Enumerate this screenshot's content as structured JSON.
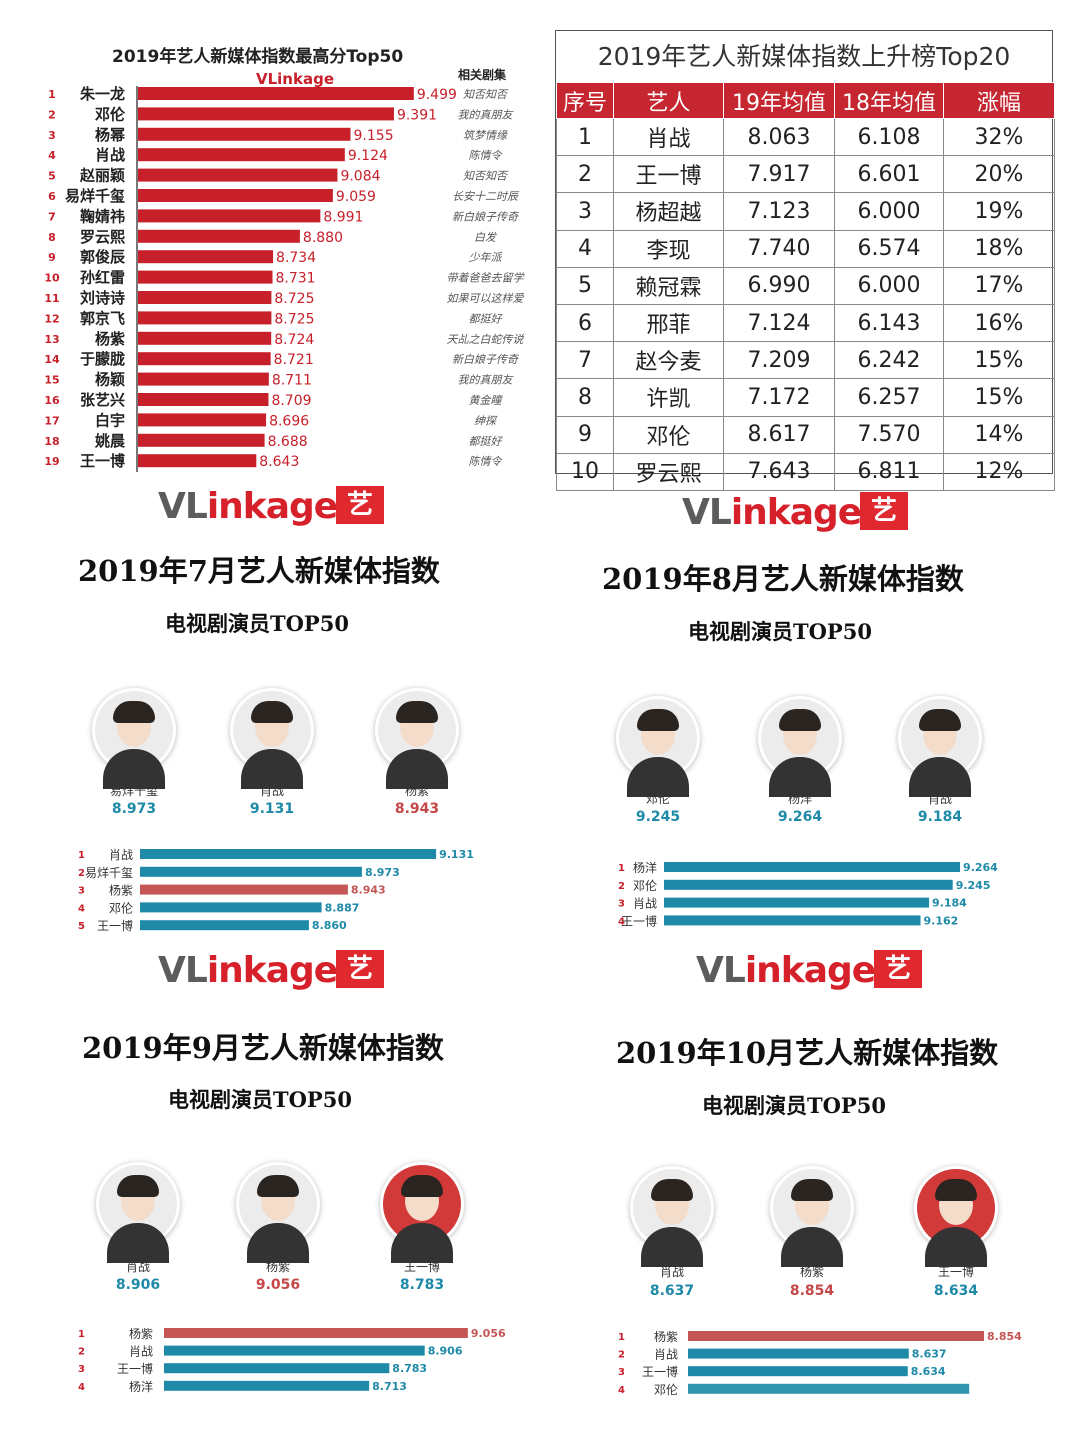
{
  "panel1": {
    "title": "2019年艺人新媒体指数最高分Top50",
    "column_header": "相关剧集",
    "logo": "VLinkage",
    "rows": [
      {
        "rank": "1",
        "name": "朱一龙",
        "value": 9.499,
        "drama": "知否知否"
      },
      {
        "rank": "2",
        "name": "邓伦",
        "value": 9.391,
        "drama": "我的真朋友"
      },
      {
        "rank": "3",
        "name": "杨幂",
        "value": 9.155,
        "drama": "筑梦情缘"
      },
      {
        "rank": "4",
        "name": "肖战",
        "value": 9.124,
        "drama": "陈情令"
      },
      {
        "rank": "5",
        "name": "赵丽颖",
        "value": 9.084,
        "drama": "知否知否"
      },
      {
        "rank": "6",
        "name": "易烊千玺",
        "value": 9.059,
        "drama": "长安十二时辰"
      },
      {
        "rank": "7",
        "name": "鞠婧祎",
        "value": 8.991,
        "drama": "新白娘子传奇"
      },
      {
        "rank": "8",
        "name": "罗云熙",
        "value": 8.88,
        "drama": "白发"
      },
      {
        "rank": "9",
        "name": "郭俊辰",
        "value": 8.734,
        "drama": "少年派"
      },
      {
        "rank": "10",
        "name": "孙红雷",
        "value": 8.731,
        "drama": "带着爸爸去留学"
      },
      {
        "rank": "11",
        "name": "刘诗诗",
        "value": 8.725,
        "drama": "如果可以这样爱"
      },
      {
        "rank": "12",
        "name": "郭京飞",
        "value": 8.725,
        "drama": "都挺好"
      },
      {
        "rank": "13",
        "name": "杨紫",
        "value": 8.724,
        "drama": "天乩之白蛇传说"
      },
      {
        "rank": "14",
        "name": "于朦胧",
        "value": 8.721,
        "drama": "新白娘子传奇"
      },
      {
        "rank": "15",
        "name": "杨颖",
        "value": 8.711,
        "drama": "我的真朋友"
      },
      {
        "rank": "16",
        "name": "张艺兴",
        "value": 8.709,
        "drama": "黄金瞳"
      },
      {
        "rank": "17",
        "name": "白宇",
        "value": 8.696,
        "drama": "绅探"
      },
      {
        "rank": "18",
        "name": "姚晨",
        "value": 8.688,
        "drama": "都挺好"
      },
      {
        "rank": "19",
        "name": "王一博",
        "value": 8.643,
        "drama": "陈情令"
      }
    ]
  },
  "panel2": {
    "title": "2019年艺人新媒体指数上升榜Top20",
    "headers": [
      "序号",
      "艺人",
      "19年均值",
      "18年均值",
      "涨幅"
    ],
    "rows": [
      [
        "1",
        "肖战",
        "8.063",
        "6.108",
        "32%"
      ],
      [
        "2",
        "王一博",
        "7.917",
        "6.601",
        "20%"
      ],
      [
        "3",
        "杨超越",
        "7.123",
        "6.000",
        "19%"
      ],
      [
        "4",
        "李现",
        "7.740",
        "6.574",
        "18%"
      ],
      [
        "5",
        "赖冠霖",
        "6.990",
        "6.000",
        "17%"
      ],
      [
        "6",
        "邢菲",
        "7.124",
        "6.143",
        "16%"
      ],
      [
        "7",
        "赵今麦",
        "7.209",
        "6.242",
        "15%"
      ],
      [
        "8",
        "许凯",
        "7.172",
        "6.257",
        "15%"
      ],
      [
        "9",
        "邓伦",
        "8.617",
        "7.570",
        "14%"
      ],
      [
        "10",
        "罗云熙",
        "7.643",
        "6.811",
        "12%"
      ]
    ]
  },
  "panels": [
    {
      "brand": "VLinkage",
      "brand_prefix": "VL",
      "brand_rest": "inkage",
      "badge": "艺",
      "title": "2019年7月艺人新媒体指数",
      "subtitle": "电视剧演员TOP50",
      "top3": [
        {
          "name": "易烊千玺",
          "score": "8.973",
          "color": "blue"
        },
        {
          "name": "肖战",
          "score": "9.131",
          "color": "blue"
        },
        {
          "name": "杨紫",
          "score": "8.943",
          "color": "red"
        }
      ],
      "bars": [
        {
          "rank": "1",
          "name": "肖战",
          "value": 9.131,
          "color": "#1e8aa8"
        },
        {
          "rank": "2",
          "name": "易烊千玺",
          "value": 8.973,
          "color": "#1e8aa8"
        },
        {
          "rank": "3",
          "name": "杨紫",
          "value": 8.943,
          "color": "#c45656"
        },
        {
          "rank": "4",
          "name": "邓伦",
          "value": 8.887,
          "color": "#1e8aa8"
        },
        {
          "rank": "5",
          "name": "王一博",
          "value": 8.86,
          "color": "#1e8aa8"
        }
      ]
    },
    {
      "brand": "VLinkage",
      "brand_prefix": "VL",
      "brand_rest": "inkage",
      "badge": "艺",
      "title": "2019年8月艺人新媒体指数",
      "subtitle": "电视剧演员TOP50",
      "top3": [
        {
          "name": "邓伦",
          "score": "9.245",
          "color": "blue"
        },
        {
          "name": "杨洋",
          "score": "9.264",
          "color": "blue"
        },
        {
          "name": "肖战",
          "score": "9.184",
          "color": "blue"
        }
      ],
      "bars": [
        {
          "rank": "1",
          "name": "杨洋",
          "value": 9.264,
          "color": "#1e8aa8"
        },
        {
          "rank": "2",
          "name": "邓伦",
          "value": 9.245,
          "color": "#1e8aa8"
        },
        {
          "rank": "3",
          "name": "肖战",
          "value": 9.184,
          "color": "#1e8aa8"
        },
        {
          "rank": "4",
          "name": "王一博",
          "value": 9.162,
          "color": "#1e8aa8"
        }
      ]
    },
    {
      "brand": "VLinkage",
      "brand_prefix": "VL",
      "brand_rest": "inkage",
      "badge": "艺",
      "title": "2019年9月艺人新媒体指数",
      "subtitle": "电视剧演员TOP50",
      "top3": [
        {
          "name": "肖战",
          "score": "8.906",
          "color": "blue"
        },
        {
          "name": "杨紫",
          "score": "9.056",
          "color": "red"
        },
        {
          "name": "王一博",
          "score": "8.783",
          "color": "blue"
        }
      ],
      "bars": [
        {
          "rank": "1",
          "name": "杨紫",
          "value": 9.056,
          "color": "#c45656"
        },
        {
          "rank": "2",
          "name": "肖战",
          "value": 8.906,
          "color": "#1e8aa8"
        },
        {
          "rank": "3",
          "name": "王一博",
          "value": 8.783,
          "color": "#1e8aa8"
        },
        {
          "rank": "4",
          "name": "杨洋",
          "value": 8.713,
          "color": "#1e8aa8"
        }
      ]
    },
    {
      "brand": "VLinkage",
      "brand_prefix": "VL",
      "brand_rest": "inkage",
      "badge": "艺",
      "title": "2019年10月艺人新媒体指数",
      "subtitle": "电视剧演员TOP50",
      "top3": [
        {
          "name": "肖战",
          "score": "8.637",
          "color": "blue"
        },
        {
          "name": "杨紫",
          "score": "8.854",
          "color": "red"
        },
        {
          "name": "王一博",
          "score": "8.634",
          "color": "blue"
        }
      ],
      "bars": [
        {
          "rank": "1",
          "name": "杨紫",
          "value": 8.854,
          "color": "#c45656"
        },
        {
          "rank": "2",
          "name": "肖战",
          "value": 8.637,
          "color": "#1e8aa8"
        },
        {
          "rank": "3",
          "name": "王一博",
          "value": 8.634,
          "color": "#1e8aa8"
        },
        {
          "rank": "4",
          "name": "邓伦",
          "value": null,
          "color": "#1e8aa8"
        }
      ]
    }
  ],
  "chart_data": [
    {
      "type": "bar",
      "title": "2019年艺人新媒体指数最高分Top50",
      "categories": [
        "朱一龙",
        "邓伦",
        "杨幂",
        "肖战",
        "赵丽颖",
        "易烊千玺",
        "鞠婧祎",
        "罗云熙",
        "郭俊辰",
        "孙红雷",
        "刘诗诗",
        "郭京飞",
        "杨紫",
        "于朦胧",
        "杨颖",
        "张艺兴",
        "白宇",
        "姚晨",
        "王一博"
      ],
      "values": [
        9.499,
        9.391,
        9.155,
        9.124,
        9.084,
        9.059,
        8.991,
        8.88,
        8.734,
        8.731,
        8.725,
        8.725,
        8.724,
        8.721,
        8.711,
        8.709,
        8.696,
        8.688,
        8.643
      ]
    },
    {
      "type": "table",
      "title": "2019年艺人新媒体指数上升榜Top20",
      "columns": [
        "序号",
        "艺人",
        "19年均值",
        "18年均值",
        "涨幅"
      ]
    },
    {
      "type": "bar",
      "title": "2019年7月艺人新媒体指数",
      "categories": [
        "肖战",
        "易烊千玺",
        "杨紫",
        "邓伦",
        "王一博"
      ],
      "values": [
        9.131,
        8.973,
        8.943,
        8.887,
        8.86
      ]
    },
    {
      "type": "bar",
      "title": "2019年8月艺人新媒体指数",
      "categories": [
        "杨洋",
        "邓伦",
        "肖战",
        "王一博"
      ],
      "values": [
        9.264,
        9.245,
        9.184,
        9.162
      ]
    },
    {
      "type": "bar",
      "title": "2019年9月艺人新媒体指数",
      "categories": [
        "杨紫",
        "肖战",
        "王一博",
        "杨洋"
      ],
      "values": [
        9.056,
        8.906,
        8.783,
        8.713
      ]
    },
    {
      "type": "bar",
      "title": "2019年10月艺人新媒体指数",
      "categories": [
        "杨紫",
        "肖战",
        "王一博",
        "邓伦"
      ],
      "values": [
        8.854,
        8.637,
        8.634,
        null
      ]
    }
  ]
}
